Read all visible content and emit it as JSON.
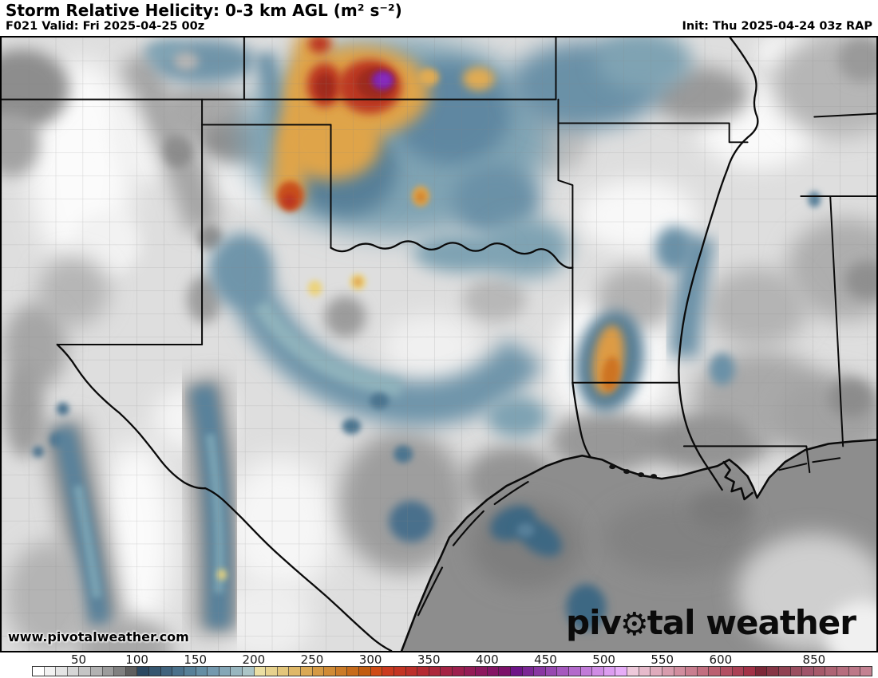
{
  "header": {
    "title": "Storm Relative Helicity: 0-3 km AGL (m² s⁻²)",
    "valid": "F021 Valid: Fri 2025-04-25 00z",
    "init": "Init: Thu 2025-04-24 03z RAP"
  },
  "watermark": {
    "text": "www.pivotalweather.com"
  },
  "logo": {
    "pre": "piv",
    "gear": "⚙",
    "post": "tal weather"
  },
  "colorbar": {
    "unit": "m² s⁻²",
    "ticks": [
      {
        "label": "50",
        "boundary": 4
      },
      {
        "label": "100",
        "boundary": 9
      },
      {
        "label": "150",
        "boundary": 14
      },
      {
        "label": "200",
        "boundary": 19
      },
      {
        "label": "250",
        "boundary": 24
      },
      {
        "label": "300",
        "boundary": 29
      },
      {
        "label": "350",
        "boundary": 34
      },
      {
        "label": "400",
        "boundary": 39
      },
      {
        "label": "450",
        "boundary": 44
      },
      {
        "label": "500",
        "boundary": 49
      },
      {
        "label": "550",
        "boundary": 54
      },
      {
        "label": "600",
        "boundary": 59
      },
      {
        "label": "850",
        "boundary": 67
      }
    ],
    "cells": [
      "#ffffff",
      "#f2f2f2",
      "#e4e4e4",
      "#d6d6d6",
      "#c5c5c5",
      "#b2b2b2",
      "#9c9c9c",
      "#808080",
      "#5f5f5f",
      "#2c4962",
      "#36566f",
      "#41637d",
      "#4b718b",
      "#578098",
      "#658ea4",
      "#7499ae",
      "#85a7b7",
      "#98b6bf",
      "#abc5c7",
      "#ebdfa3",
      "#e7d28e",
      "#e3c67b",
      "#dfb868",
      "#daa955",
      "#d59a45",
      "#d08b36",
      "#cb7b28",
      "#c66b1b",
      "#c15c10",
      "#cf4b16",
      "#ca3a1f",
      "#c33423",
      "#bc2f2a",
      "#b42a32",
      "#ac273b",
      "#a42344",
      "#9c1f4d",
      "#941c56",
      "#8c185e",
      "#841565",
      "#7c1169",
      "#6e1487",
      "#7b2694",
      "#8937a2",
      "#9748b0",
      "#a559be",
      "#b36acb",
      "#c17bd8",
      "#cf8ce4",
      "#dc9df0",
      "#e7adf7",
      "#eec9da",
      "#e7bacb",
      "#dfabbc",
      "#d89cad",
      "#d18d9e",
      "#c97e8f",
      "#c26f80",
      "#bb6071",
      "#b25063",
      "#aa4155",
      "#a23247",
      "#7c2838",
      "#863645",
      "#904252",
      "#9a4e5f",
      "#a0546a",
      "#a65a6a",
      "#ae6474",
      "#b66e7e",
      "#bd7888",
      "#c48292"
    ]
  }
}
